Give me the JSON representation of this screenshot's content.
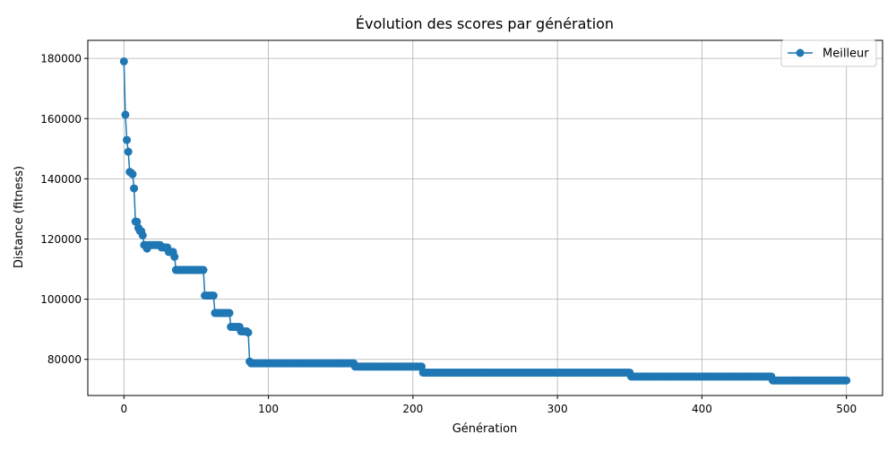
{
  "chart_data": {
    "type": "line",
    "title": "Évolution des scores par génération",
    "xlabel": "Génération",
    "ylabel": "Distance (fitness)",
    "xlim": [
      -25,
      525
    ],
    "ylim": [
      68000,
      186000
    ],
    "xticks": [
      0,
      100,
      200,
      300,
      400,
      500
    ],
    "xtick_labels": [
      "0",
      "100",
      "200",
      "300",
      "400",
      "500"
    ],
    "yticks": [
      80000,
      100000,
      120000,
      140000,
      160000,
      180000
    ],
    "ytick_labels": [
      "80000",
      "100000",
      "120000",
      "140000",
      "160000",
      "180000"
    ],
    "grid": true,
    "legend_position": "top-right",
    "series_color": "#1f77b4",
    "series": [
      {
        "name": "Meilleur",
        "steps": [
          [
            0,
            179000
          ],
          [
            1,
            161300
          ],
          [
            2,
            152900
          ],
          [
            3,
            149000
          ],
          [
            4,
            142300
          ],
          [
            5,
            142000
          ],
          [
            6,
            141500
          ],
          [
            7,
            136800
          ],
          [
            8,
            125800
          ],
          [
            9,
            125700
          ],
          [
            10,
            123700
          ],
          [
            11,
            122700
          ],
          [
            12,
            122600
          ],
          [
            13,
            121200
          ],
          [
            14,
            118000
          ],
          [
            15,
            118000
          ],
          [
            16,
            116800
          ],
          [
            17,
            118000
          ],
          [
            18,
            118000
          ],
          [
            19,
            118000
          ],
          [
            26,
            117200
          ],
          [
            31,
            115700
          ],
          [
            35,
            114100
          ],
          [
            36,
            109700
          ],
          [
            56,
            101200
          ],
          [
            63,
            95400
          ],
          [
            74,
            90800
          ],
          [
            81,
            89300
          ],
          [
            86,
            88900
          ],
          [
            87,
            79300
          ],
          [
            88,
            78700
          ],
          [
            160,
            77600
          ],
          [
            207,
            75600
          ],
          [
            351,
            74300
          ],
          [
            449,
            73000
          ],
          [
            500,
            73000
          ]
        ]
      }
    ]
  }
}
